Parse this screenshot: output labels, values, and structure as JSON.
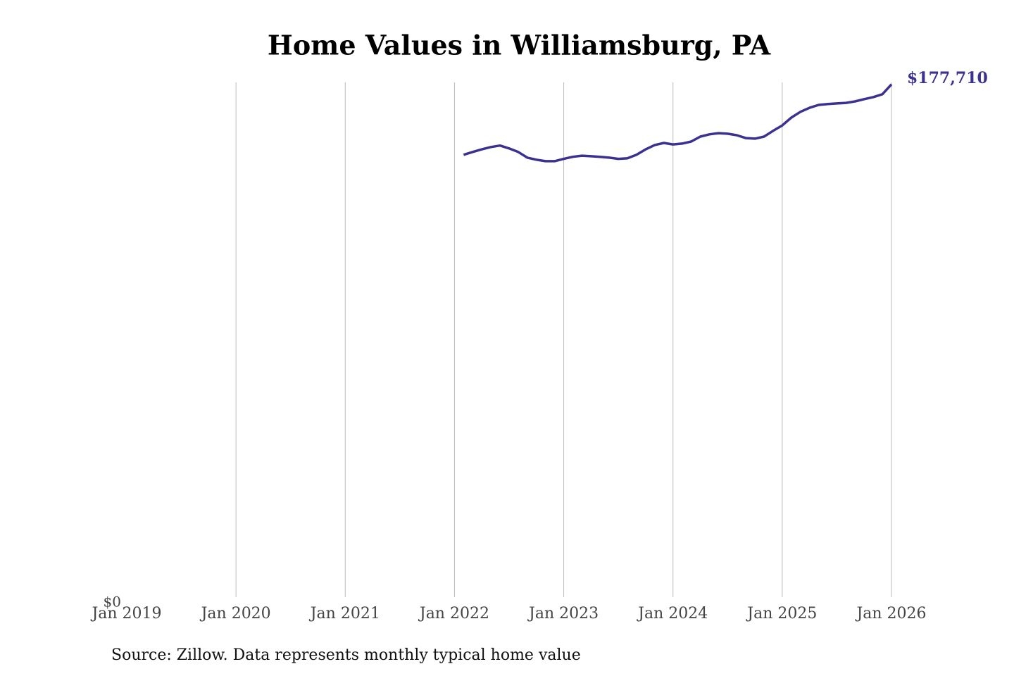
{
  "chart_data": {
    "type": "line",
    "title": "Home Values in Williamsburg, PA",
    "source": "Source: Zillow. Data represents monthly typical home value",
    "x": [
      "2022-02",
      "2022-03",
      "2022-04",
      "2022-05",
      "2022-06",
      "2022-07",
      "2022-08",
      "2022-09",
      "2022-10",
      "2022-11",
      "2022-12",
      "2023-01",
      "2023-02",
      "2023-03",
      "2023-04",
      "2023-05",
      "2023-06",
      "2023-07",
      "2023-08",
      "2023-09",
      "2023-10",
      "2023-11",
      "2023-12",
      "2024-01",
      "2024-02",
      "2024-03",
      "2024-04",
      "2024-05",
      "2024-06",
      "2024-07",
      "2024-08",
      "2024-09",
      "2024-10",
      "2024-11",
      "2024-12",
      "2025-01",
      "2025-02",
      "2025-03",
      "2025-04",
      "2025-05",
      "2025-06",
      "2025-07",
      "2025-08",
      "2025-09",
      "2025-10",
      "2025-11",
      "2025-12",
      "2026-01"
    ],
    "series": [
      {
        "name": "Home value",
        "color": "#3a3190",
        "values": [
          153300,
          154300,
          155200,
          156000,
          156500,
          155500,
          154300,
          152300,
          151600,
          151100,
          151100,
          151900,
          152600,
          153000,
          152800,
          152600,
          152300,
          151900,
          152100,
          153300,
          155200,
          156700,
          157400,
          156900,
          157200,
          157900,
          159600,
          160400,
          160800,
          160600,
          160100,
          159100,
          158900,
          159600,
          161600,
          163500,
          166200,
          168200,
          169600,
          170600,
          170900,
          171100,
          171300,
          171800,
          172600,
          173300,
          174300,
          177710
        ],
        "value_labels": [
          null,
          null,
          null,
          null,
          null,
          null,
          null,
          null,
          null,
          null,
          null,
          null,
          null,
          null,
          null,
          null,
          null,
          null,
          null,
          null,
          null,
          null,
          null,
          null,
          null,
          null,
          null,
          null,
          null,
          null,
          null,
          null,
          null,
          null,
          null,
          null,
          null,
          null,
          null,
          null,
          null,
          null,
          null,
          null,
          null,
          null,
          null,
          "$177,710"
        ]
      }
    ],
    "xlim": [
      "2019-01",
      "2026-01"
    ],
    "xticks": [
      {
        "value": "2019-01",
        "label": "Jan 2019"
      },
      {
        "value": "2020-01",
        "label": "Jan 2020"
      },
      {
        "value": "2021-01",
        "label": "Jan 2021"
      },
      {
        "value": "2022-01",
        "label": "Jan 2022"
      },
      {
        "value": "2023-01",
        "label": "Jan 2023"
      },
      {
        "value": "2024-01",
        "label": "Jan 2024"
      },
      {
        "value": "2025-01",
        "label": "Jan 2025"
      },
      {
        "value": "2026-01",
        "label": "Jan 2026"
      }
    ],
    "ylim": [
      0,
      178400
    ],
    "yticks": [
      {
        "value": 0,
        "label": "$0"
      }
    ],
    "grid": "x"
  }
}
